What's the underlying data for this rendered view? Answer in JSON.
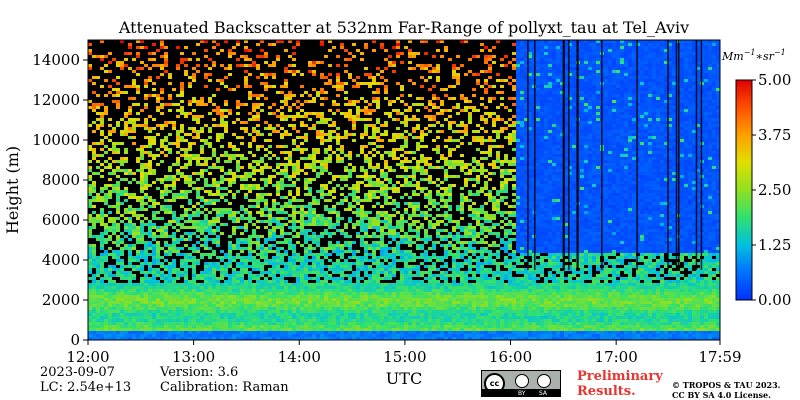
{
  "chart_data": {
    "type": "heatmap",
    "title": "Attenuated Backscatter at 532nm Far-Range of pollyxt_tau at Tel_Aviv",
    "xlabel": "UTC",
    "ylabel": "Height (m)",
    "x_ticks": [
      "12:00",
      "13:00",
      "14:00",
      "15:00",
      "16:00",
      "17:00",
      "17:59"
    ],
    "x_range_hours": [
      12.0,
      17.983
    ],
    "y_ticks": [
      0,
      2000,
      4000,
      6000,
      8000,
      10000,
      12000,
      14000
    ],
    "ylim": [
      0,
      15000
    ],
    "colorbar": {
      "unit_label": "Mm^-1*sr^-1",
      "ticks": [
        "5.00",
        "3.75",
        "2.50",
        "1.25",
        "0.00"
      ],
      "range": [
        0,
        5
      ],
      "colormap": "jet"
    },
    "features": {
      "dense_aerosol_layer_top_m": 3000,
      "noise_region_above_m": 4500,
      "clear_region_start_hour": 16.05,
      "strong_bottom_layer_top_m": 500
    }
  },
  "footer": {
    "date": "2023-09-07",
    "lc": "LC: 2.54e+13",
    "version": "Version: 3.6",
    "calibration": "Calibration: Raman",
    "preliminary_line1": "Preliminary",
    "preliminary_line2": "Results.",
    "copyright_line1": "© TROPOS & TAU 2023.",
    "copyright_line2": "CC BY SA 4.0 License."
  },
  "license_badge": {
    "cc": "cc",
    "by": "BY",
    "sa": "SA"
  }
}
